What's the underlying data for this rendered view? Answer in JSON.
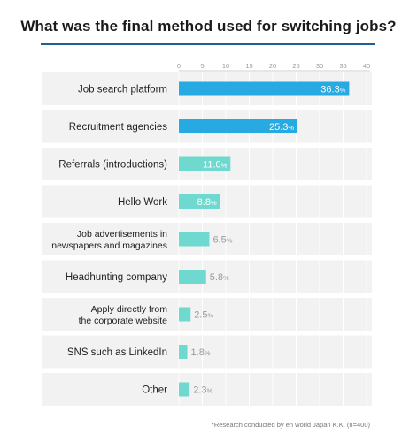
{
  "title": "What was the final method used for switching jobs?",
  "footnote": "*Research conducted by en world Japan K.K. (n=400)",
  "colors": {
    "primary_bar": "#27a9e1",
    "secondary_bar": "#6fd9cf",
    "title_rule": "#1f5f96",
    "row_band": "#f2f2f2"
  },
  "chart_data": {
    "type": "bar",
    "orientation": "horizontal",
    "title": "What was the final method used for switching jobs?",
    "x_ticks": [
      0,
      5,
      10,
      15,
      20,
      25,
      30,
      35,
      40
    ],
    "xlim": [
      0,
      40
    ],
    "unit": "%",
    "grid": true,
    "categories": [
      [
        "Job search platform"
      ],
      [
        "Recruitment agencies"
      ],
      [
        "Referrals (introductions)"
      ],
      [
        "Hello Work"
      ],
      [
        "Job advertisements in",
        "newspapers and magazines"
      ],
      [
        "Headhunting company"
      ],
      [
        "Apply directly from",
        "the corporate website"
      ],
      [
        "SNS such as LinkedIn"
      ],
      [
        "Other"
      ]
    ],
    "values": [
      36.3,
      25.3,
      11.0,
      8.8,
      6.5,
      5.8,
      2.5,
      1.8,
      2.3
    ],
    "value_labels": [
      "36.3",
      "25.3",
      "11.0",
      "8.8",
      "6.5",
      "5.8",
      "2.5",
      "1.8",
      "2.3"
    ],
    "highlight": [
      "primary",
      "primary",
      "secondary",
      "secondary",
      "secondary",
      "secondary",
      "secondary",
      "secondary",
      "secondary"
    ]
  }
}
